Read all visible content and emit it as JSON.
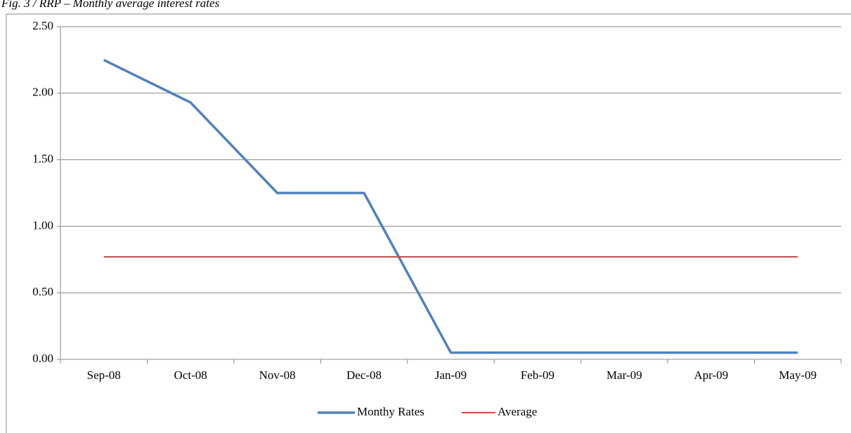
{
  "chart_data": {
    "type": "line",
    "title": "Fig. 3 / RRP – Monthly average interest rates",
    "categories": [
      "Sep-08",
      "Oct-08",
      "Nov-08",
      "Dec-08",
      "Jan-09",
      "Feb-09",
      "Mar-09",
      "Apr-09",
      "May-09"
    ],
    "series": [
      {
        "name": "Monthy Rates",
        "color": "#4f81bd",
        "values": [
          2.25,
          1.93,
          1.25,
          1.25,
          0.05,
          0.05,
          0.05,
          0.05,
          0.05
        ]
      },
      {
        "name": "Average",
        "color": "#c0504d",
        "values": [
          0.77,
          0.77,
          0.77,
          0.77,
          0.77,
          0.77,
          0.77,
          0.77,
          0.77
        ]
      }
    ],
    "ylim": [
      0,
      2.5
    ],
    "yticks": [
      {
        "value": 0,
        "label": "0.00"
      },
      {
        "value": 0.5,
        "label": "0.50"
      },
      {
        "value": 1,
        "label": "1.00"
      },
      {
        "value": 1.5,
        "label": "1.50"
      },
      {
        "value": 2,
        "label": "2.00"
      },
      {
        "value": 2.5,
        "label": "2.50"
      }
    ],
    "grid": true,
    "legend": "bottom"
  }
}
